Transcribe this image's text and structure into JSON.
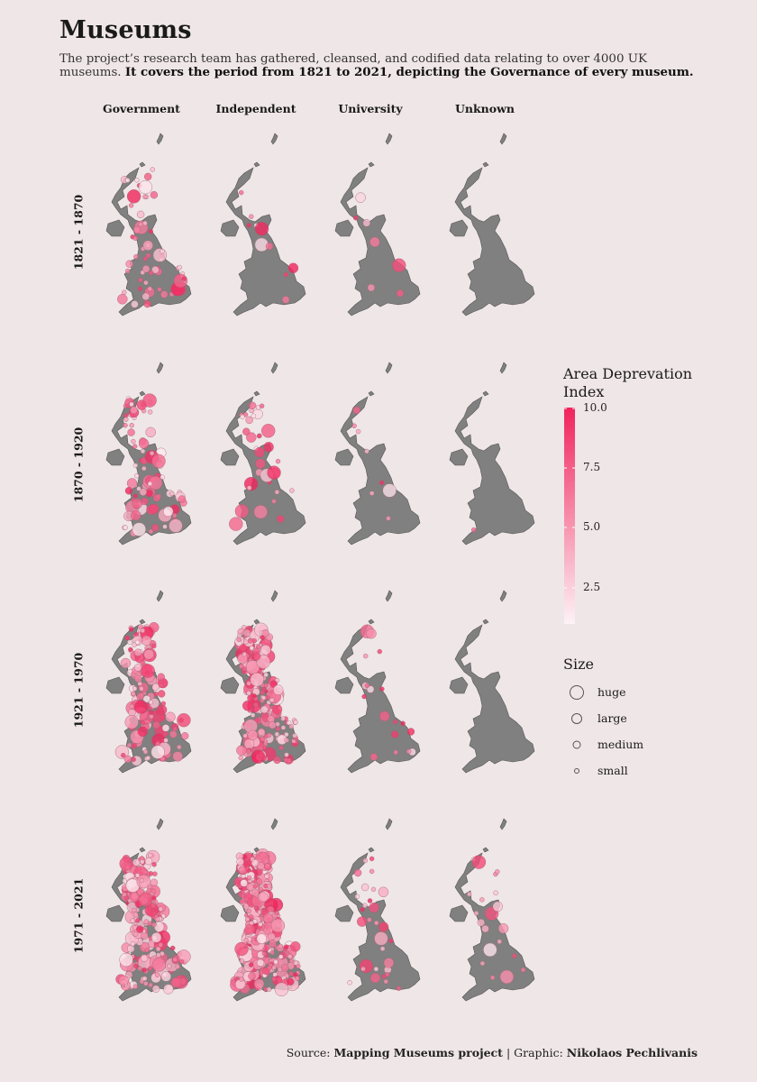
{
  "title": "Museums",
  "subtitle_plain": "The project’s research team has gathered, cleansed, and codified data relating to over 4000 UK museums.",
  "subtitle_bold": "It covers the period from 1821 to 2021, depicting the Governance of every museum.",
  "columns": [
    "Government",
    "Independent",
    "University",
    "Unknown"
  ],
  "rows": [
    "1821 - 1870",
    "1870 - 1920",
    "1921 - 1970",
    "1971 - 2021"
  ],
  "colors": {
    "background": "#efe6e7",
    "land": "#808080",
    "low": "#fbeaf0",
    "high": "#f0245c"
  },
  "color_legend": {
    "title": "Area Deprevation Index",
    "ticks": [
      "10.0",
      "7.5",
      "5.0",
      "2.5"
    ],
    "range": [
      1,
      10
    ]
  },
  "size_legend": {
    "title": "Size",
    "items": [
      "huge",
      "large",
      "medium",
      "small"
    ]
  },
  "source": {
    "prefix": "Source:",
    "name": "Mapping Museums project",
    "sep": "| Graphic:",
    "author": "Nikolaos Pechlivanis"
  },
  "chart_data": {
    "type": "scatter",
    "description_units": "one small-multiple map per (period, governance); marker count reflects number of museums",
    "panels": [
      {
        "period": "1821 - 1870",
        "governance": "Government",
        "museums": 60
      },
      {
        "period": "1821 - 1870",
        "governance": "Independent",
        "museums": 10
      },
      {
        "period": "1821 - 1870",
        "governance": "University",
        "museums": 7
      },
      {
        "period": "1821 - 1870",
        "governance": "Unknown",
        "museums": 0
      },
      {
        "period": "1870 - 1920",
        "governance": "Government",
        "museums": 85
      },
      {
        "period": "1870 - 1920",
        "governance": "Independent",
        "museums": 35
      },
      {
        "period": "1870 - 1920",
        "governance": "University",
        "museums": 8
      },
      {
        "period": "1870 - 1920",
        "governance": "Unknown",
        "museums": 1
      },
      {
        "period": "1921 - 1970",
        "governance": "Government",
        "museums": 140
      },
      {
        "period": "1921 - 1970",
        "governance": "Independent",
        "museums": 230
      },
      {
        "period": "1921 - 1970",
        "governance": "University",
        "museums": 18
      },
      {
        "period": "1921 - 1970",
        "governance": "Unknown",
        "museums": 0
      },
      {
        "period": "1971 - 2021",
        "governance": "Government",
        "museums": 220
      },
      {
        "period": "1971 - 2021",
        "governance": "Independent",
        "museums": 420
      },
      {
        "period": "1971 - 2021",
        "governance": "University",
        "museums": 30
      },
      {
        "period": "1971 - 2021",
        "governance": "Unknown",
        "museums": 20
      }
    ]
  }
}
